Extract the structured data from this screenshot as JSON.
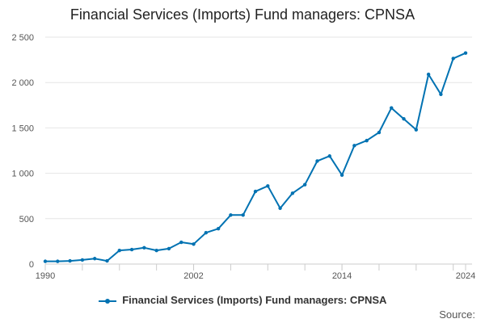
{
  "chart_data": {
    "type": "line",
    "title": "Financial Services (Imports) Fund managers: CPNSA",
    "xlabel": "",
    "ylabel": "",
    "x_ticks": [
      "1990",
      "2002",
      "2014",
      "2024"
    ],
    "y_ticks": [
      "0",
      "500",
      "1 000",
      "1 500",
      "2 000",
      "2 500"
    ],
    "ylim": [
      0,
      2500
    ],
    "xlim": [
      1990,
      2024
    ],
    "grid": true,
    "legend_position": "bottom",
    "series": [
      {
        "name": "Financial Services (Imports) Fund managers: CPNSA",
        "color": "#0072b2",
        "x": [
          1990,
          1991,
          1992,
          1993,
          1994,
          1995,
          1996,
          1997,
          1998,
          1999,
          2000,
          2001,
          2002,
          2003,
          2004,
          2005,
          2006,
          2007,
          2008,
          2009,
          2010,
          2011,
          2012,
          2013,
          2014,
          2015,
          2016,
          2017,
          2018,
          2019,
          2020,
          2021,
          2022,
          2023,
          2024
        ],
        "y": [
          30,
          30,
          35,
          45,
          60,
          35,
          150,
          160,
          180,
          150,
          170,
          240,
          220,
          345,
          390,
          540,
          540,
          800,
          860,
          615,
          780,
          875,
          1135,
          1190,
          980,
          1305,
          1360,
          1450,
          1720,
          1600,
          1480,
          2090,
          1870,
          2265,
          2325
        ]
      }
    ]
  },
  "legend": {
    "label": "Financial Services (Imports) Fund managers: CPNSA"
  },
  "source": {
    "label": "Source:"
  }
}
